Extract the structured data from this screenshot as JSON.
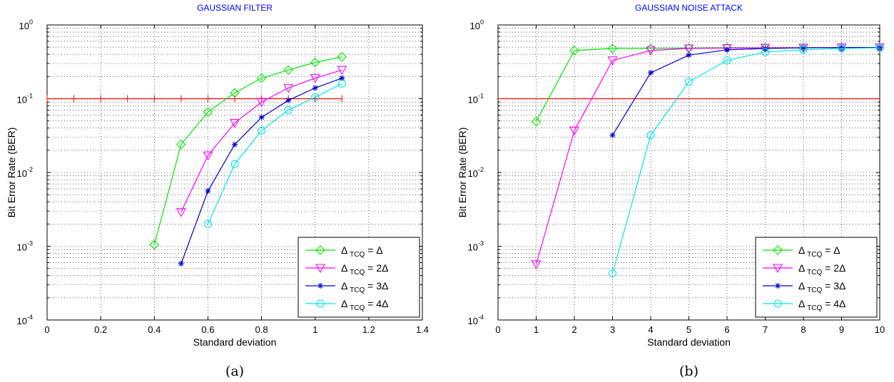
{
  "chart_data": [
    {
      "type": "line",
      "title": "GAUSSIAN FILTER",
      "xlabel": "Standard deviation",
      "ylabel": "Bit Error Rate (BER)",
      "caption": "(a)",
      "yscale": "log",
      "xlim": [
        0,
        1.4
      ],
      "ylim": [
        0.0001,
        1
      ],
      "xticks": [
        0,
        0.2,
        0.4,
        0.6,
        0.8,
        1,
        1.2,
        1.4
      ],
      "xtick_labels": [
        "0",
        "0.2",
        "0.4",
        "0.6",
        "0.8",
        "1",
        "1.2",
        "1.4"
      ],
      "yticks": [
        {
          "value": 0.0001,
          "base": "10",
          "exp": "-4"
        },
        {
          "value": 0.001,
          "base": "10",
          "exp": "-3"
        },
        {
          "value": 0.01,
          "base": "10",
          "exp": "-2"
        },
        {
          "value": 0.1,
          "base": "10",
          "exp": "-1"
        },
        {
          "value": 1,
          "base": "10",
          "exp": "0"
        }
      ],
      "grid": true,
      "legend_position": "bottom-right",
      "threshold": {
        "y": 0.1,
        "x": [
          0,
          1.1
        ],
        "color": "#ff0000",
        "tick_step": 0.1
      },
      "series": [
        {
          "sym": "Δ",
          "sub": "TCQ",
          "rhs": "= Δ",
          "color": "#00e600",
          "marker": "diamond",
          "x": [
            0.4,
            0.5,
            0.6,
            0.7,
            0.8,
            0.9,
            1.0,
            1.1
          ],
          "y": [
            0.00105,
            0.024,
            0.066,
            0.12,
            0.19,
            0.245,
            0.31,
            0.37
          ]
        },
        {
          "sym": "Δ",
          "sub": "TCQ",
          "rhs": "= 2Δ",
          "color": "#ff00ff",
          "marker": "triangle-down",
          "x": [
            0.5,
            0.6,
            0.7,
            0.8,
            0.9,
            1.0,
            1.1
          ],
          "y": [
            0.0029,
            0.017,
            0.047,
            0.09,
            0.14,
            0.19,
            0.245
          ]
        },
        {
          "sym": "Δ",
          "sub": "TCQ",
          "rhs": "= 3Δ",
          "color": "#0000cc",
          "marker": "asterisk",
          "x": [
            0.5,
            0.6,
            0.7,
            0.8,
            0.9,
            1.0,
            1.1
          ],
          "y": [
            0.00058,
            0.0056,
            0.024,
            0.056,
            0.095,
            0.14,
            0.19
          ]
        },
        {
          "sym": "Δ",
          "sub": "TCQ",
          "rhs": "= 4Δ",
          "color": "#00e6e6",
          "marker": "circle",
          "x": [
            0.6,
            0.7,
            0.8,
            0.9,
            1.0,
            1.1
          ],
          "y": [
            0.002,
            0.013,
            0.037,
            0.07,
            0.105,
            0.16
          ]
        }
      ]
    },
    {
      "type": "line",
      "title": "GAUSSIAN NOISE ATTACK",
      "xlabel": "Standard deviation",
      "ylabel": "Bit Error Rate (BER)",
      "caption": "(b)",
      "yscale": "log",
      "xlim": [
        0,
        10
      ],
      "ylim": [
        0.0001,
        1
      ],
      "xticks": [
        0,
        1,
        2,
        3,
        4,
        5,
        6,
        7,
        8,
        9,
        10
      ],
      "xtick_labels": [
        "0",
        "1",
        "2",
        "3",
        "4",
        "5",
        "6",
        "7",
        "8",
        "9",
        "10"
      ],
      "yticks": [
        {
          "value": 0.0001,
          "base": "10",
          "exp": "-4"
        },
        {
          "value": 0.001,
          "base": "10",
          "exp": "-3"
        },
        {
          "value": 0.01,
          "base": "10",
          "exp": "-2"
        },
        {
          "value": 0.1,
          "base": "10",
          "exp": "-1"
        },
        {
          "value": 1,
          "base": "10",
          "exp": "0"
        }
      ],
      "grid": true,
      "legend_position": "bottom-right",
      "threshold": {
        "y": 0.1,
        "x": [
          0,
          10
        ],
        "color": "#ff0000",
        "tick_step": 0
      },
      "series": [
        {
          "sym": "Δ",
          "sub": "TCQ",
          "rhs": "= Δ",
          "color": "#00e600",
          "marker": "diamond",
          "x": [
            1,
            2,
            3,
            4,
            5,
            6,
            7,
            8,
            9,
            10
          ],
          "y": [
            0.049,
            0.45,
            0.48,
            0.48,
            0.485,
            0.49,
            0.49,
            0.49,
            0.495,
            0.495
          ]
        },
        {
          "sym": "Δ",
          "sub": "TCQ",
          "rhs": "= 2Δ",
          "color": "#ff00ff",
          "marker": "triangle-down",
          "x": [
            1,
            2,
            3,
            4,
            5,
            6,
            7,
            8,
            9,
            10
          ],
          "y": [
            0.00057,
            0.037,
            0.33,
            0.45,
            0.48,
            0.485,
            0.49,
            0.49,
            0.495,
            0.495
          ]
        },
        {
          "sym": "Δ",
          "sub": "TCQ",
          "rhs": "= 3Δ",
          "color": "#0000cc",
          "marker": "asterisk",
          "x": [
            3,
            4,
            5,
            6,
            7,
            8,
            9,
            10
          ],
          "y": [
            0.032,
            0.225,
            0.39,
            0.46,
            0.48,
            0.49,
            0.495,
            0.495
          ]
        },
        {
          "sym": "Δ",
          "sub": "TCQ",
          "rhs": "= 4Δ",
          "color": "#00e6e6",
          "marker": "circle",
          "x": [
            3,
            4,
            5,
            6,
            7,
            8,
            9,
            10
          ],
          "y": [
            0.00043,
            0.032,
            0.17,
            0.33,
            0.43,
            0.46,
            0.48,
            0.49
          ]
        }
      ]
    }
  ]
}
